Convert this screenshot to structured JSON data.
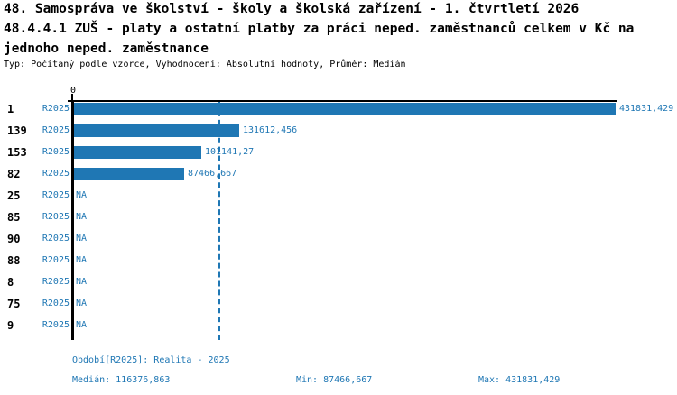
{
  "header": {
    "title_line1": "48. Samospráva ve školství - školy a školská zařízení - 1. čtvrtletí 2026",
    "title_line2": "48.4.4.1 ZUŠ - platy a ostatní platby za práci neped. zaměstnanců celkem v Kč na",
    "title_line3": "jednoho neped. zaměstnance",
    "meta": "Typ: Počítaný podle vzorce, Vyhodnocení: Absolutní hodnoty, Průměr: Medián"
  },
  "chart_data": {
    "type": "bar",
    "orientation": "horizontal",
    "axis_zero_label": "0",
    "series_label": "R2025",
    "categories": [
      "1",
      "139",
      "153",
      "82",
      "25",
      "85",
      "90",
      "88",
      "8",
      "75",
      "9"
    ],
    "values": [
      431831.429,
      131612.456,
      101141.27,
      87466.667,
      null,
      null,
      null,
      null,
      null,
      null,
      null
    ],
    "value_labels": [
      "431831,429",
      "131612,456",
      "101141,27",
      "87466,667",
      "NA",
      "NA",
      "NA",
      "NA",
      "NA",
      "NA",
      "NA"
    ],
    "median": 116376.863,
    "xlim": [
      0,
      431831.429
    ],
    "grid": false,
    "legend": false,
    "bar_color": "#1f77b4",
    "median_line_color": "#1f77b4",
    "label_color": "#1f77b4"
  },
  "footer": {
    "period": "Období[R2025]: Realita - 2025",
    "median": "Medián: 116376,863",
    "min": "Min: 87466,667",
    "max": "Max: 431831,429"
  }
}
